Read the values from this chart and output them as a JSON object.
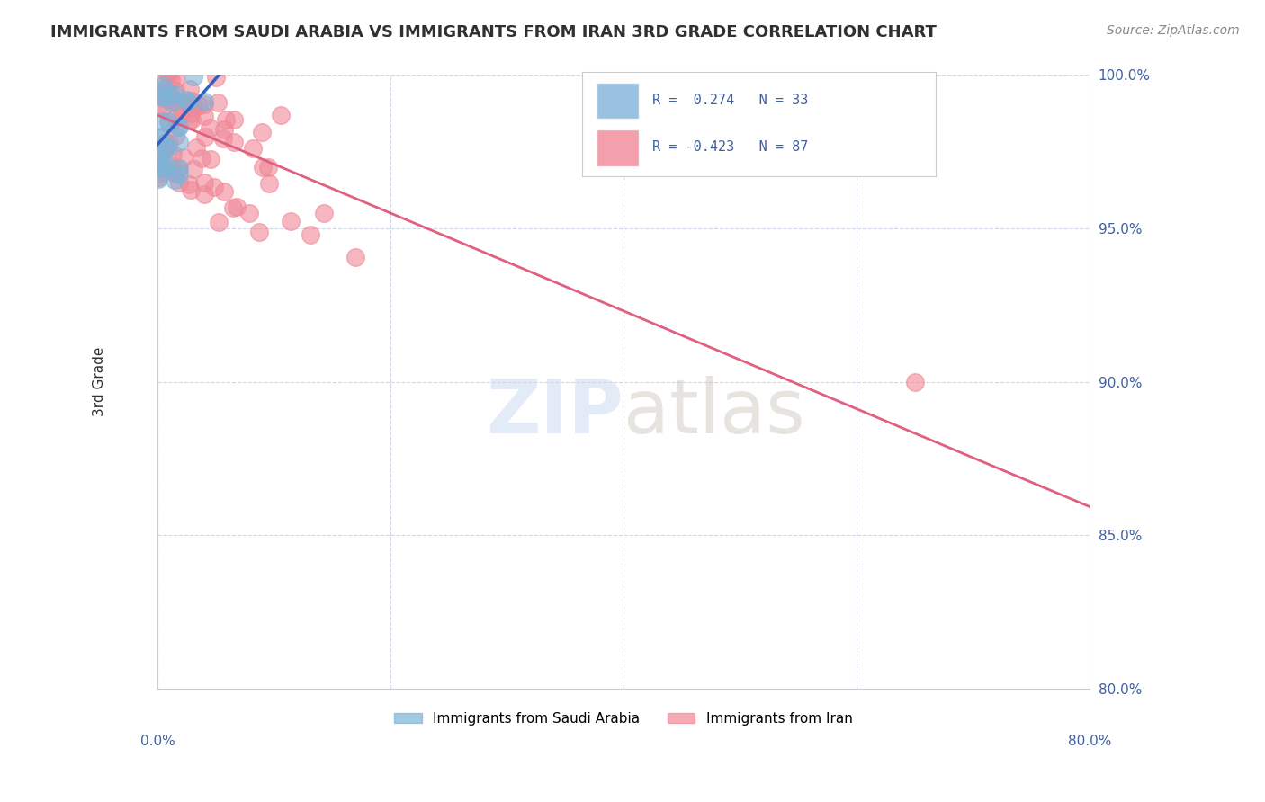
{
  "title": "IMMIGRANTS FROM SAUDI ARABIA VS IMMIGRANTS FROM IRAN 3RD GRADE CORRELATION CHART",
  "source": "Source: ZipAtlas.com",
  "ylabel": "3rd Grade",
  "xmin": 0.0,
  "xmax": 80.0,
  "ymin": 80.0,
  "ymax": 100.0,
  "yticks": [
    80.0,
    85.0,
    90.0,
    95.0,
    100.0
  ],
  "series_saudi": {
    "color": "#7eb3d8",
    "R": 0.274,
    "N": 33,
    "trend_color": "#3060c0"
  },
  "series_iran": {
    "color": "#f08898",
    "R": -0.423,
    "N": 87,
    "trend_color": "#e06080"
  },
  "background_color": "#ffffff",
  "grid_color": "#d0d8e8",
  "axis_label_color": "#4060a0",
  "legend_r_color": "#4060a0"
}
